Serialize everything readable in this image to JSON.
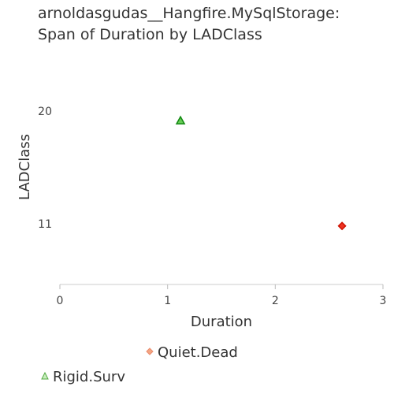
{
  "chart_data": {
    "type": "scatter",
    "title_lines": [
      "arnoldasgudas__Hangfire.MySqlStorage:",
      "Span of Duration by LADClass"
    ],
    "xlabel": "Duration",
    "ylabel": "LADClass",
    "xlim": [
      0,
      3
    ],
    "ylim": [
      6,
      26
    ],
    "x_ticks": [
      0,
      1,
      2,
      3
    ],
    "y_ticks": [
      11,
      20
    ],
    "grid": false,
    "legend_placement": "bottom",
    "series": [
      {
        "name": "Quiet.Dead",
        "marker": "diamond",
        "fill": "#f4a582",
        "point_fill": "#ee3322",
        "point_stroke": "#cc1100",
        "points": [
          {
            "x": 2.62,
            "y": 11
          }
        ]
      },
      {
        "name": "Rigid.Surv",
        "marker": "triangle",
        "fill": "#99dd88",
        "point_fill": "#66cc55",
        "point_stroke": "#118811",
        "points": [
          {
            "x": 1.12,
            "y": 20
          }
        ]
      }
    ]
  }
}
